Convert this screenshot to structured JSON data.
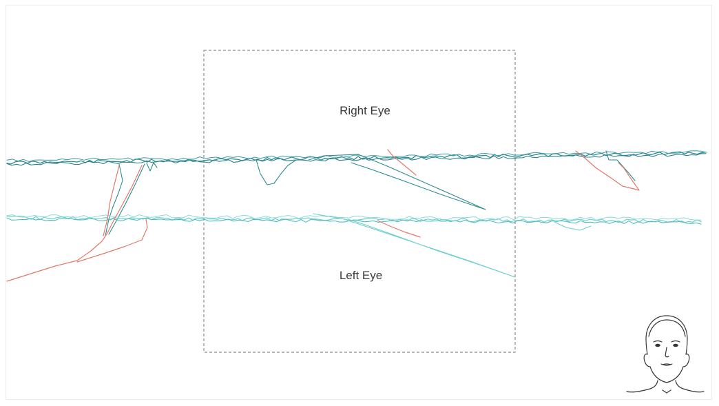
{
  "labels": {
    "right_eye": "Right Eye",
    "left_eye": "Left Eye"
  },
  "colors": {
    "right_eye_trace": "#2a8c93",
    "left_eye_trace": "#6ccfcb",
    "saccade_trace": "#e0786a",
    "region_border": "#8a8a8a",
    "face_stroke": "#333333"
  },
  "icons": {
    "face": "head-silhouette-icon"
  }
}
